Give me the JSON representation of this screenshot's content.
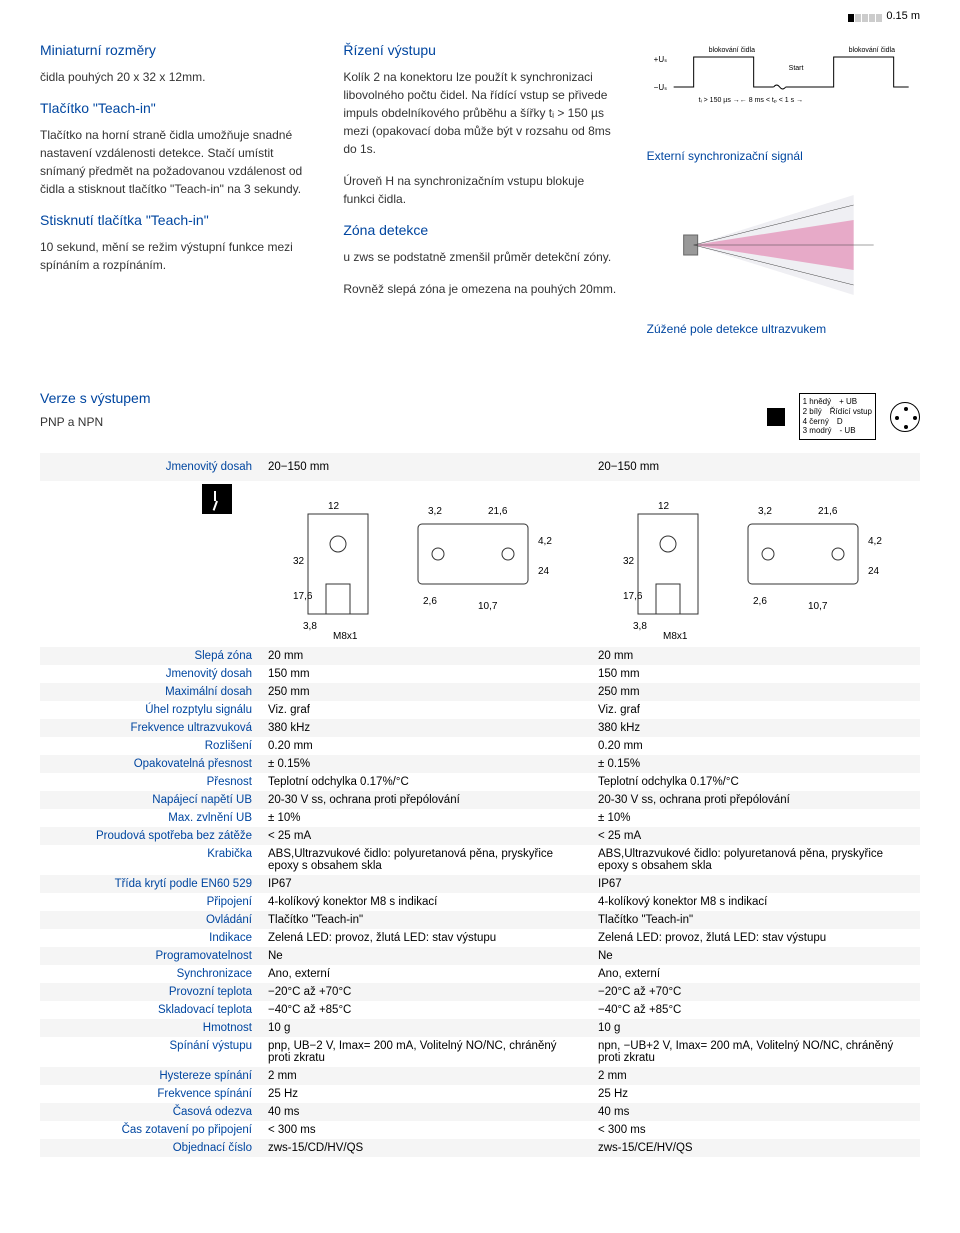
{
  "top": {
    "range": "0.15 m"
  },
  "col1": {
    "h1": "Miniaturní rozměry",
    "p1": "čidla pouhých 20 x 32 x 12mm.",
    "h2": "Tlačítko \"Teach-in\"",
    "p2": "Tlačítko na horní straně čidla umožňuje snadné nastavení vzdálenosti detekce. Stačí umístit snímaný předmět na požadovanou vzdálenost od čidla a stisknout tlačítko \"Teach-in\" na 3 sekundy.",
    "h3": "Stisknutí tlačítka \"Teach-in\"",
    "p3": "10 sekund, mění se režim výstupní funkce mezi spínáním a rozpínáním."
  },
  "col2": {
    "h1": "Řízení výstupu",
    "p1": "Kolík 2 na konektoru lze použít k synchronizaci libovolného počtu čidel. Na řídící vstup se přivede impuls obdelníkového průběhu a šířky  tᵢ > 150 µs mezi (opakovací doba může být v rozsahu od 8ms do 1s.",
    "p1b": "Úroveň H na synchronizačním vstupu blokuje funkci čidla.",
    "h2": "Zóna detekce",
    "p2": "u zws se podstatně zmenšil průměr detekční zóny.",
    "p2b": "Rovněž slepá zóna je omezena na pouhých 20mm."
  },
  "col3": {
    "label_block1": "blokování čidla",
    "label_block2": "blokování čidla",
    "label_start": "Start",
    "label_plus": "+Uₛ",
    "label_minus": "−Uₛ",
    "label_timing": "tᵢ > 150 µs →← 8 ms < tₚ < 1 s →",
    "cap1": "Externí synchronizační signál",
    "cap2": "Zúžené pole detekce ultrazvukem"
  },
  "outputs": {
    "h": "Verze s výstupem",
    "sub": "PNP a NPN"
  },
  "pins": {
    "l1": "1 hnědý",
    "l2": "2 bílý",
    "l3": "4 černý",
    "l4": "3 modrý",
    "r1": "+ UB",
    "r2": "Řídící vstup",
    "r3": "D",
    "r4": "- UB"
  },
  "table": {
    "headerLabel": "Jmenovitý dosah",
    "headerV1": "20−150 mm",
    "headerV2": "20−150 mm",
    "dimensions": "M8x1",
    "rows": [
      {
        "l": "Slepá zóna",
        "a": "20 mm",
        "b": "20 mm"
      },
      {
        "l": "Jmenovitý dosah",
        "a": "150 mm",
        "b": "150 mm"
      },
      {
        "l": "Maximální dosah",
        "a": "250 mm",
        "b": "250 mm"
      },
      {
        "l": "Úhel rozptylu signálu",
        "a": "Viz. graf",
        "b": "Viz. graf"
      },
      {
        "l": "Frekvence ultrazvuková",
        "a": "380 kHz",
        "b": "380 kHz"
      },
      {
        "l": "Rozlišení",
        "a": "0.20 mm",
        "b": "0.20 mm"
      },
      {
        "l": "Opakovatelná přesnost",
        "a": "± 0.15%",
        "b": "± 0.15%"
      },
      {
        "l": "Přesnost",
        "a": "Teplotní odchylka 0.17%/°C",
        "b": "Teplotní odchylka 0.17%/°C"
      },
      {
        "l": "Napájecí napětí  UB",
        "a": "20-30 V ss, ochrana proti přepólování",
        "b": "20-30 V ss, ochrana proti přepólování"
      },
      {
        "l": "Max. zvlnění  UB",
        "a": "± 10%",
        "b": "± 10%"
      },
      {
        "l": "Proudová spotřeba bez zátěže",
        "a": "< 25 mA",
        "b": "< 25 mA"
      },
      {
        "l": "Krabička",
        "a": "ABS,Ultrazvukové čidlo: polyuretanová pěna, pryskyřice epoxy s obsahem skla",
        "b": "ABS,Ultrazvukové čidlo: polyuretanová pěna, pryskyřice epoxy s obsahem skla"
      },
      {
        "l": "Třída krytí podle EN60 529",
        "a": "IP67",
        "b": "IP67"
      },
      {
        "l": "Připojení",
        "a": "4-kolíkový konektor M8 s indikací",
        "b": "4-kolíkový konektor M8 s indikací"
      },
      {
        "l": "Ovládání",
        "a": "Tlačítko \"Teach-in\"",
        "b": "Tlačítko \"Teach-in\""
      },
      {
        "l": "Indikace",
        "a": "Zelená LED: provoz, žlutá LED: stav výstupu",
        "b": "Zelená LED: provoz, žlutá LED: stav výstupu"
      },
      {
        "l": "Programovatelnost",
        "a": "Ne",
        "b": "Ne"
      },
      {
        "l": "Synchronizace",
        "a": "Ano, externí",
        "b": "Ano, externí"
      },
      {
        "l": "Provozní teplota",
        "a": "−20°C až +70°C",
        "b": "−20°C až +70°C"
      },
      {
        "l": "Skladovací teplota",
        "a": "−40°C až +85°C",
        "b": "−40°C až +85°C"
      },
      {
        "l": "Hmotnost",
        "a": "10 g",
        "b": "10 g"
      },
      {
        "l": "Spínání výstupu",
        "a": "pnp, UB−2 V, Imax= 200 mA, Volitelný NO/NC, chráněný proti zkratu",
        "b": "npn, −UB+2 V, Imax= 200 mA, Volitelný NO/NC, chráněný proti zkratu"
      },
      {
        "l": "Hystereze spínání",
        "a": "2 mm",
        "b": "2 mm"
      },
      {
        "l": "Frekvence spínání",
        "a": "25 Hz",
        "b": "25 Hz"
      },
      {
        "l": "Časová odezva",
        "a": "40 ms",
        "b": "40 ms"
      },
      {
        "l": "Čas zotavení po připojení",
        "a": "< 300 ms",
        "b": "< 300 ms"
      },
      {
        "l": "Objednací číslo",
        "a": "zws-15/CD/HV/QS",
        "b": "zws-15/CE/HV/QS"
      }
    ]
  }
}
